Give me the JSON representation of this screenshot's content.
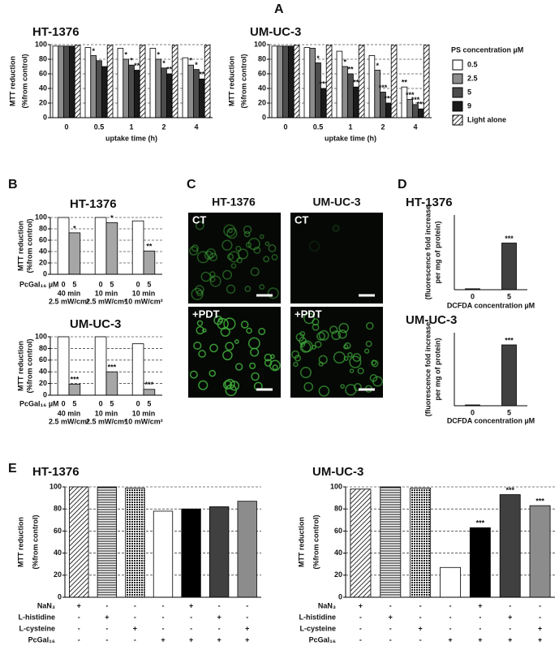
{
  "panels": {
    "labels": [
      "A",
      "B",
      "C",
      "D",
      "E"
    ]
  },
  "panel_c": {
    "columns": [
      "HT-1376",
      "UM-UC-3"
    ],
    "rows": [
      [
        "CT",
        "CT"
      ],
      [
        "+PDT",
        "+PDT"
      ]
    ]
  },
  "chart_data": [
    {
      "type": "bar",
      "title": "HT-1376",
      "ylabel": [
        "MTT reduction",
        "(%from control)"
      ],
      "xlabel": "uptake time (h)",
      "categories": [
        "0",
        "0.5",
        "1",
        "2",
        "4"
      ],
      "ylim": [
        0,
        100
      ],
      "yticks": [
        0,
        20,
        40,
        60,
        80,
        100
      ],
      "grid": true,
      "series": [
        {
          "name": "0.5",
          "color": "#ffffff",
          "values": [
            98,
            96,
            95,
            95,
            82
          ],
          "significance": [
            null,
            null,
            null,
            null,
            null
          ]
        },
        {
          "name": "2.5",
          "color": "#8c8c8c",
          "values": [
            98,
            85,
            80,
            80,
            72
          ],
          "significance": [
            null,
            "*",
            "*",
            "*",
            "*"
          ]
        },
        {
          "name": "5",
          "color": "#4d4d4d",
          "values": [
            98,
            78,
            72,
            68,
            66
          ],
          "significance": [
            null,
            null,
            "*",
            "*",
            "*"
          ]
        },
        {
          "name": "9",
          "color": "#1a1a1a",
          "values": [
            98,
            70,
            65,
            60,
            53
          ],
          "significance": [
            null,
            null,
            "**",
            "**",
            "**"
          ]
        },
        {
          "name": "Light alone",
          "color": "hatch-diagonal",
          "values": [
            99,
            99,
            99,
            99,
            99
          ],
          "significance": [
            null,
            null,
            null,
            null,
            null
          ]
        }
      ]
    },
    {
      "type": "bar",
      "title": "UM-UC-3",
      "ylabel": [
        "MTT reduction",
        "(%from control)"
      ],
      "xlabel": "uptake time (h)",
      "categories": [
        "0",
        "0.5",
        "1",
        "2",
        "4"
      ],
      "ylim": [
        0,
        100
      ],
      "yticks": [
        0,
        20,
        40,
        60,
        80,
        100
      ],
      "grid": true,
      "legend": "right",
      "legend_title": "PS concentration µM",
      "series": [
        {
          "name": "0.5",
          "color": "#ffffff",
          "values": [
            98,
            96,
            91,
            85,
            42
          ],
          "significance": [
            null,
            null,
            null,
            null,
            "**"
          ]
        },
        {
          "name": "2.5",
          "color": "#8c8c8c",
          "values": [
            98,
            95,
            70,
            65,
            25
          ],
          "significance": [
            null,
            null,
            "*",
            "*",
            "***"
          ]
        },
        {
          "name": "5",
          "color": "#4d4d4d",
          "values": [
            98,
            75,
            60,
            35,
            18
          ],
          "significance": [
            null,
            "*",
            "**",
            "***",
            "***"
          ]
        },
        {
          "name": "9",
          "color": "#1a1a1a",
          "values": [
            98,
            40,
            42,
            20,
            12
          ],
          "significance": [
            null,
            "***",
            "**",
            "***",
            "***"
          ]
        },
        {
          "name": "Light alone",
          "color": "hatch-diagonal",
          "values": [
            99,
            99,
            99,
            99,
            99
          ],
          "significance": [
            null,
            null,
            null,
            null,
            null
          ]
        }
      ]
    },
    {
      "type": "bar",
      "title": "HT-1376",
      "ylabel": [
        "MTT reduction",
        "(%from control)"
      ],
      "xlabel": "PcGal₁₆ µM",
      "categories": [
        [
          "40 min",
          "2.5 mW/cm²"
        ],
        [
          "10 min",
          "2.5 mW/cm²"
        ],
        [
          "10 min",
          "10 mW/cm²"
        ]
      ],
      "ylim": [
        0,
        100
      ],
      "yticks": [
        0,
        20,
        40,
        60,
        80,
        100
      ],
      "grid": true,
      "series": [
        {
          "name": "0",
          "color": "#ffffff",
          "values": [
            100,
            100,
            94
          ],
          "significance": [
            null,
            null,
            null
          ]
        },
        {
          "name": "5",
          "color": "#a6a6a6",
          "values": [
            73,
            91,
            41
          ],
          "significance": [
            "*",
            "*",
            "**"
          ]
        }
      ]
    },
    {
      "type": "bar",
      "title": "UM-UC-3",
      "ylabel": [
        "MTT reduction",
        "(%from control)"
      ],
      "xlabel": "PcGal₁₆ µM",
      "categories": [
        [
          "40 min",
          "2.5 mW/cm²"
        ],
        [
          "10 min",
          "2.5 mW/cm²"
        ],
        [
          "10 min",
          "10 mW/cm²"
        ]
      ],
      "ylim": [
        0,
        100
      ],
      "yticks": [
        0,
        20,
        40,
        60,
        80,
        100
      ],
      "grid": true,
      "series": [
        {
          "name": "0",
          "color": "#ffffff",
          "values": [
            100,
            100,
            88
          ],
          "significance": [
            null,
            null,
            null
          ]
        },
        {
          "name": "5",
          "color": "#a6a6a6",
          "values": [
            19,
            40,
            10
          ],
          "significance": [
            "***",
            "***",
            "***"
          ]
        }
      ]
    },
    {
      "type": "bar",
      "title": "HT-1376",
      "ylabel": [
        "(fluorescence fold increase",
        "per mg of protein)"
      ],
      "xlabel": "DCFDA concentration µM",
      "categories": [
        "0",
        "5"
      ],
      "values": [
        1,
        50
      ],
      "significance": [
        null,
        "***"
      ],
      "color": "#404040",
      "ylim": [
        0,
        80
      ]
    },
    {
      "type": "bar",
      "title": "UM-UC-3",
      "ylabel": [
        "(fluorescence fold increase",
        "per mg of protein)"
      ],
      "xlabel": "DCFDA concentration µM",
      "categories": [
        "0",
        "5"
      ],
      "values": [
        1,
        75
      ],
      "significance": [
        null,
        "***"
      ],
      "color": "#404040",
      "ylim": [
        0,
        90
      ]
    },
    {
      "type": "bar",
      "title": "HT-1376",
      "ylabel": [
        "MTT reduction",
        "(%from control)"
      ],
      "categories": [
        null,
        null,
        null,
        null,
        null,
        null,
        null
      ],
      "values": [
        100,
        100,
        99,
        78,
        80,
        82,
        87
      ],
      "significance": [
        null,
        null,
        null,
        null,
        null,
        null,
        null
      ],
      "colors": [
        "hatch-diagonal",
        "hatch-horizontal",
        "hatch-dots",
        "#ffffff",
        "#000000",
        "#404040",
        "#8c8c8c"
      ],
      "ylim": [
        0,
        100
      ],
      "yticks": [
        0,
        20,
        40,
        60,
        80,
        100
      ],
      "grid": true,
      "conditions": [
        {
          "name": "NaN₃",
          "signs": [
            "+",
            "-",
            "-",
            "-",
            "+",
            "-",
            "-"
          ]
        },
        {
          "name": "L-histidine",
          "signs": [
            "-",
            "+",
            "-",
            "-",
            "-",
            "+",
            "-"
          ]
        },
        {
          "name": "L-cysteine",
          "signs": [
            "-",
            "-",
            "+",
            "-",
            "-",
            "-",
            "+"
          ]
        },
        {
          "name": "PcGal₁₆",
          "signs": [
            "-",
            "-",
            "-",
            "+",
            "+",
            "+",
            "+"
          ]
        }
      ]
    },
    {
      "type": "bar",
      "title": "UM-UC-3",
      "ylabel": [
        "MTT reduction",
        "(%from control)"
      ],
      "categories": [
        null,
        null,
        null,
        null,
        null,
        null,
        null
      ],
      "values": [
        98,
        100,
        99,
        27,
        63,
        93,
        83
      ],
      "significance": [
        null,
        null,
        null,
        null,
        "***",
        "***",
        "***"
      ],
      "colors": [
        "hatch-diagonal",
        "hatch-horizontal",
        "hatch-dots",
        "#ffffff",
        "#000000",
        "#404040",
        "#8c8c8c"
      ],
      "ylim": [
        0,
        100
      ],
      "yticks": [
        0,
        20,
        40,
        60,
        80,
        100
      ],
      "grid": true,
      "conditions": [
        {
          "name": "NaN₃",
          "signs": [
            "+",
            "-",
            "-",
            "-",
            "+",
            "-",
            "-"
          ]
        },
        {
          "name": "L-histidine",
          "signs": [
            "-",
            "+",
            "-",
            "-",
            "-",
            "+",
            "-"
          ]
        },
        {
          "name": "L-cysteine",
          "signs": [
            "-",
            "-",
            "+",
            "-",
            "-",
            "-",
            "+"
          ]
        },
        {
          "name": "PcGal₁₆",
          "signs": [
            "-",
            "-",
            "-",
            "+",
            "+",
            "+",
            "+"
          ]
        }
      ]
    }
  ]
}
